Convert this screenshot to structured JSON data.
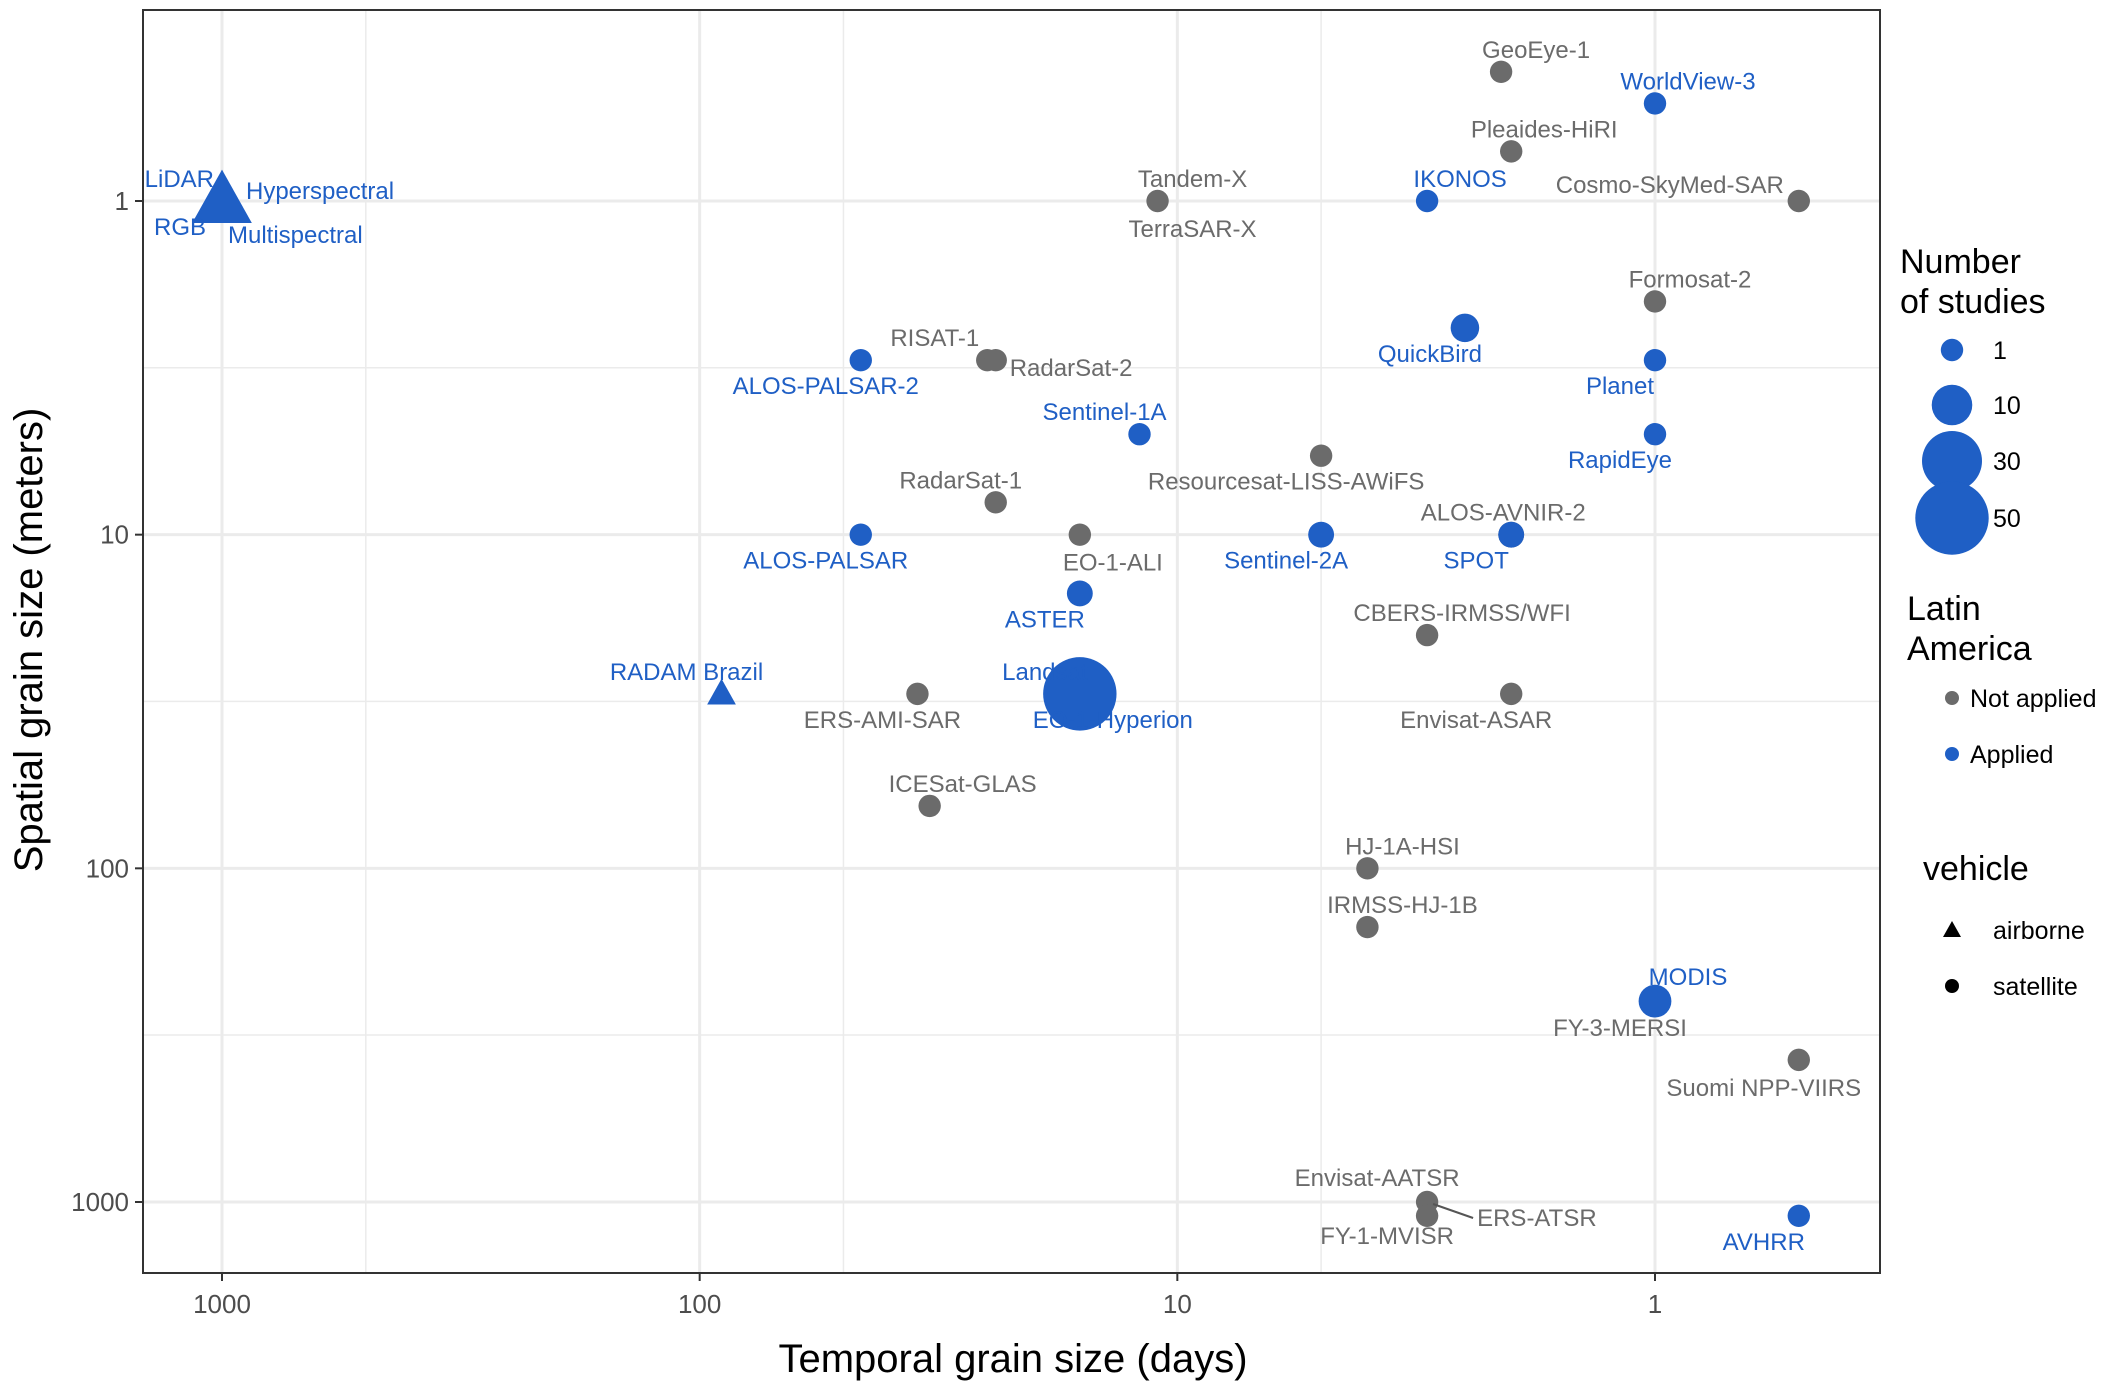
{
  "colors": {
    "applied": "#1f5fc5",
    "not_applied": "#6b6b6b",
    "grid": "#ebebeb",
    "panel_border": "#333333"
  },
  "chart_data": {
    "type": "scatter",
    "title": "",
    "xlabel": "Temporal grain size (days)",
    "ylabel": "Spatial grain size (meters)",
    "x_scale": "log, reversed",
    "y_scale": "log, reversed",
    "xlim": [
      1600,
      0.5
    ],
    "ylim": [
      0.38,
      1400
    ],
    "x_ticks": [
      1000,
      100,
      10,
      1
    ],
    "x_tick_labels": [
      "1000",
      "100",
      "10",
      "1"
    ],
    "y_ticks": [
      1,
      10,
      100,
      1000
    ],
    "y_tick_labels": [
      "1",
      "10",
      "100",
      "1000"
    ],
    "grid": true,
    "legend_position": "right",
    "legends": {
      "size": {
        "title": [
          "Number",
          "of studies"
        ],
        "entries": [
          {
            "label": "1",
            "value": 1
          },
          {
            "label": "10",
            "value": 10
          },
          {
            "label": "30",
            "value": 30
          },
          {
            "label": "50",
            "value": 50
          }
        ]
      },
      "color": {
        "title": [
          "Latin",
          "America"
        ],
        "entries": [
          {
            "label": "Not applied",
            "key": "not_applied"
          },
          {
            "label": "Applied",
            "key": "applied"
          }
        ]
      },
      "shape": {
        "title": [
          "vehicle"
        ],
        "entries": [
          {
            "label": "airborne",
            "key": "airborne"
          },
          {
            "label": "satellite",
            "key": "satellite"
          }
        ]
      }
    },
    "points": [
      {
        "label": "GeoEye-1",
        "days": 2.1,
        "meters": 0.41,
        "studies": 1,
        "applied": false,
        "vehicle": "satellite"
      },
      {
        "label": "WorldView-3",
        "days": 1,
        "meters": 0.51,
        "studies": 1,
        "applied": true,
        "vehicle": "satellite"
      },
      {
        "label": "Pleaides-HiRI",
        "days": 2,
        "meters": 0.71,
        "studies": 1,
        "applied": false,
        "vehicle": "satellite"
      },
      {
        "label": "IKONOS",
        "days": 3,
        "meters": 1,
        "studies": 1,
        "applied": true,
        "vehicle": "satellite"
      },
      {
        "label": "Cosmo-SkyMed-SAR",
        "days": 0.5,
        "meters": 1,
        "studies": 1,
        "applied": false,
        "vehicle": "satellite"
      },
      {
        "label": "Tandem-X",
        "days": 11,
        "meters": 1,
        "studies": 1,
        "applied": false,
        "vehicle": "satellite"
      },
      {
        "label": "TerraSAR-X",
        "days": 11,
        "meters": 1,
        "studies": 1,
        "applied": false,
        "vehicle": "satellite"
      },
      {
        "label": "LiDAR",
        "days": 1000,
        "meters": 1,
        "studies": 15,
        "applied": true,
        "vehicle": "airborne"
      },
      {
        "label": "Hyperspectral",
        "days": 1000,
        "meters": 1,
        "studies": 15,
        "applied": true,
        "vehicle": "airborne"
      },
      {
        "label": "RGB",
        "days": 1000,
        "meters": 1,
        "studies": 15,
        "applied": true,
        "vehicle": "airborne"
      },
      {
        "label": "Multispectral",
        "days": 1000,
        "meters": 1,
        "studies": 15,
        "applied": true,
        "vehicle": "airborne"
      },
      {
        "label": "Formosat-2",
        "days": 1,
        "meters": 2,
        "studies": 1,
        "applied": false,
        "vehicle": "satellite"
      },
      {
        "label": "QuickBird",
        "days": 2.5,
        "meters": 2.4,
        "studies": 3,
        "applied": true,
        "vehicle": "satellite"
      },
      {
        "label": "Planet",
        "days": 1,
        "meters": 3,
        "studies": 1,
        "applied": true,
        "vehicle": "satellite"
      },
      {
        "label": "RISAT-1",
        "days": 25,
        "meters": 3,
        "studies": 1,
        "applied": false,
        "vehicle": "satellite"
      },
      {
        "label": "RadarSat-2",
        "days": 24,
        "meters": 3,
        "studies": 1,
        "applied": false,
        "vehicle": "satellite"
      },
      {
        "label": "ALOS-PALSAR-2",
        "days": 46,
        "meters": 3,
        "studies": 1,
        "applied": true,
        "vehicle": "satellite"
      },
      {
        "label": "Sentinel-1A",
        "days": 12,
        "meters": 5,
        "studies": 1,
        "applied": true,
        "vehicle": "satellite"
      },
      {
        "label": "RapidEye",
        "days": 1,
        "meters": 5,
        "studies": 1,
        "applied": true,
        "vehicle": "satellite"
      },
      {
        "label": "Resourcesat-LISS-AWiFS",
        "days": 5,
        "meters": 5.8,
        "studies": 1,
        "applied": false,
        "vehicle": "satellite"
      },
      {
        "label": "RadarSat-1",
        "days": 24,
        "meters": 8,
        "studies": 1,
        "applied": false,
        "vehicle": "satellite"
      },
      {
        "label": "ALOS-PALSAR",
        "days": 46,
        "meters": 10,
        "studies": 1,
        "applied": true,
        "vehicle": "satellite"
      },
      {
        "label": "EO-1-ALI",
        "days": 16,
        "meters": 10,
        "studies": 1,
        "applied": false,
        "vehicle": "satellite"
      },
      {
        "label": "Sentinel-2A",
        "days": 5,
        "meters": 10,
        "studies": 2,
        "applied": true,
        "vehicle": "satellite"
      },
      {
        "label": "SPOT",
        "days": 2,
        "meters": 10,
        "studies": 2,
        "applied": true,
        "vehicle": "satellite"
      },
      {
        "label": "ALOS-AVNIR-2",
        "days": 2,
        "meters": 10,
        "studies": 2,
        "applied": false,
        "vehicle": "satellite"
      },
      {
        "label": "ASTER",
        "days": 16,
        "meters": 15,
        "studies": 2,
        "applied": true,
        "vehicle": "satellite"
      },
      {
        "label": "CBERS-IRMSS/WFI",
        "days": 3,
        "meters": 20,
        "studies": 1,
        "applied": false,
        "vehicle": "satellite"
      },
      {
        "label": "RADAM Brazil",
        "days": 90,
        "meters": 30,
        "studies": 1,
        "applied": true,
        "vehicle": "airborne"
      },
      {
        "label": "ERS-AMI-SAR",
        "days": 35,
        "meters": 30,
        "studies": 1,
        "applied": false,
        "vehicle": "satellite"
      },
      {
        "label": "Landsat",
        "days": 16,
        "meters": 30,
        "studies": 50,
        "applied": true,
        "vehicle": "satellite"
      },
      {
        "label": "EO-1-Hyperion",
        "days": 16,
        "meters": 30,
        "studies": 1,
        "applied": true,
        "vehicle": "satellite"
      },
      {
        "label": "Envisat-ASAR",
        "days": 2,
        "meters": 30,
        "studies": 1,
        "applied": false,
        "vehicle": "satellite"
      },
      {
        "label": "ICESat-GLAS",
        "days": 33,
        "meters": 65,
        "studies": 1,
        "applied": false,
        "vehicle": "satellite"
      },
      {
        "label": "HJ-1A-HSI",
        "days": 4,
        "meters": 100,
        "studies": 1,
        "applied": false,
        "vehicle": "satellite"
      },
      {
        "label": "IRMSS-HJ-1B",
        "days": 4,
        "meters": 150,
        "studies": 1,
        "applied": false,
        "vehicle": "satellite"
      },
      {
        "label": "MODIS",
        "days": 1,
        "meters": 250,
        "studies": 5,
        "applied": true,
        "vehicle": "satellite"
      },
      {
        "label": "FY-3-MERSI",
        "days": 1,
        "meters": 250,
        "studies": 1,
        "applied": false,
        "vehicle": "satellite"
      },
      {
        "label": "Suomi NPP-VIIRS",
        "days": 0.5,
        "meters": 375,
        "studies": 1,
        "applied": false,
        "vehicle": "satellite"
      },
      {
        "label": "Envisat-AATSR",
        "days": 3,
        "meters": 1000,
        "studies": 1,
        "applied": false,
        "vehicle": "satellite"
      },
      {
        "label": "ERS-ATSR",
        "days": 3,
        "meters": 1000,
        "studies": 1,
        "applied": false,
        "vehicle": "satellite"
      },
      {
        "label": "FY-1-MVISR",
        "days": 3,
        "meters": 1100,
        "studies": 1,
        "applied": false,
        "vehicle": "satellite"
      },
      {
        "label": "AVHRR",
        "days": 0.5,
        "meters": 1100,
        "studies": 1,
        "applied": true,
        "vehicle": "satellite"
      }
    ]
  }
}
